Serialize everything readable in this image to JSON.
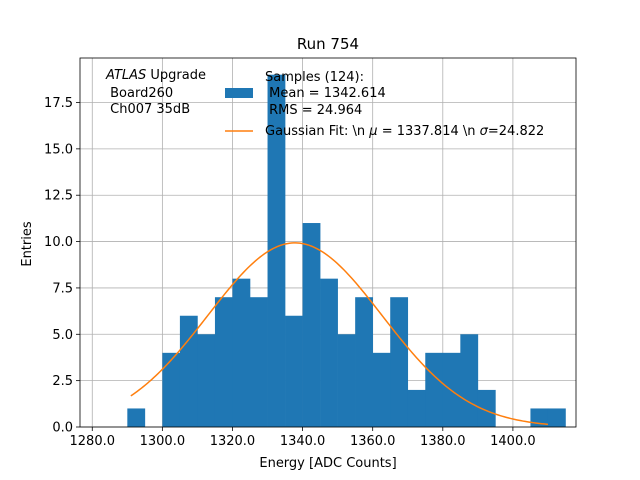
{
  "chart_data": {
    "type": "bar",
    "title": "Run 754",
    "xlabel": "Energy [ADC Counts]",
    "ylabel": "Entries",
    "xlim": [
      1276.5,
      1418
    ],
    "ylim": [
      0,
      19.9
    ],
    "grid": true,
    "bar_color": "#1f77b4",
    "fit_color": "#ff7f0e",
    "x_ticks": [
      1280,
      1300,
      1320,
      1340,
      1360,
      1380,
      1400
    ],
    "x_tick_labels": [
      "1280.0",
      "1300.0",
      "1320.0",
      "1340.0",
      "1360.0",
      "1380.0",
      "1400.0"
    ],
    "y_ticks": [
      0,
      2.5,
      5,
      7.5,
      10,
      12.5,
      15,
      17.5
    ],
    "y_tick_labels": [
      "0.0",
      "2.5",
      "5.0",
      "7.5",
      "10.0",
      "12.5",
      "15.0",
      "17.5"
    ],
    "bin_width": 5,
    "bins": [
      {
        "x0": 1290,
        "count": 1
      },
      {
        "x0": 1295,
        "count": 0
      },
      {
        "x0": 1300,
        "count": 4
      },
      {
        "x0": 1305,
        "count": 6
      },
      {
        "x0": 1310,
        "count": 5
      },
      {
        "x0": 1315,
        "count": 7
      },
      {
        "x0": 1320,
        "count": 8
      },
      {
        "x0": 1325,
        "count": 7
      },
      {
        "x0": 1330,
        "count": 19
      },
      {
        "x0": 1335,
        "count": 6
      },
      {
        "x0": 1340,
        "count": 11
      },
      {
        "x0": 1345,
        "count": 8
      },
      {
        "x0": 1350,
        "count": 5
      },
      {
        "x0": 1355,
        "count": 7
      },
      {
        "x0": 1360,
        "count": 4
      },
      {
        "x0": 1365,
        "count": 7
      },
      {
        "x0": 1370,
        "count": 2
      },
      {
        "x0": 1375,
        "count": 4
      },
      {
        "x0": 1380,
        "count": 4
      },
      {
        "x0": 1385,
        "count": 5
      },
      {
        "x0": 1390,
        "count": 2
      },
      {
        "x0": 1395,
        "count": 0
      },
      {
        "x0": 1400,
        "count": 0
      },
      {
        "x0": 1405,
        "count": 1
      },
      {
        "x0": 1410,
        "count": 1
      }
    ],
    "fit": {
      "amplitude": 9.93,
      "mu": 1337.814,
      "sigma": 24.822,
      "x_range": [
        1291,
        1410
      ]
    },
    "annotation": {
      "italic": "ATLAS",
      "line1_rest": " Upgrade",
      "line2": " Board260",
      "line3": " Ch007 35dB"
    },
    "legend": {
      "position": "top-right",
      "entries": [
        {
          "kind": "bar",
          "lines": [
            "Samples (124):",
            " Mean = 1342.614",
            " RMS = 24.964"
          ]
        },
        {
          "kind": "line",
          "prefix": "Gaussian Fit: \\n ",
          "mu_sym": "μ",
          "mid": " = 1337.814 \\n ",
          "sigma_sym": "σ",
          "suffix": "=24.822"
        }
      ]
    }
  }
}
